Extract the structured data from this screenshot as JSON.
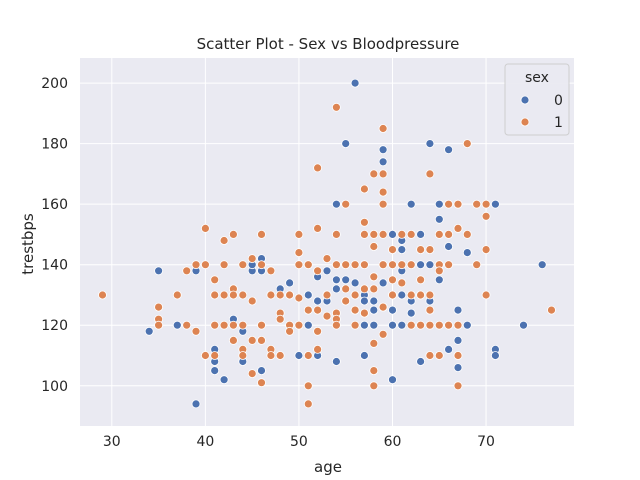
{
  "chart_data": {
    "type": "scatter",
    "title": "Scatter Plot - Sex vs Bloodpressure",
    "xlabel": "age",
    "ylabel": "trestbps",
    "xlim": [
      26.6,
      79.4
    ],
    "ylim": [
      86.7,
      208.3
    ],
    "xticks": [
      30,
      40,
      50,
      60,
      70
    ],
    "yticks": [
      100,
      120,
      140,
      160,
      180,
      200
    ],
    "grid": true,
    "background": "#eaeaf2",
    "legend": {
      "title": "sex",
      "placement": "top-right"
    },
    "series": [
      {
        "name": "0",
        "color": "#4c72b0",
        "points": [
          [
            34,
            118
          ],
          [
            35,
            138
          ],
          [
            37,
            120
          ],
          [
            39,
            94
          ],
          [
            39,
            138
          ],
          [
            41,
            105
          ],
          [
            41,
            112
          ],
          [
            41,
            108
          ],
          [
            42,
            102
          ],
          [
            43,
            122
          ],
          [
            43,
            132
          ],
          [
            44,
            118
          ],
          [
            44,
            108
          ],
          [
            45,
            138
          ],
          [
            45,
            140
          ],
          [
            46,
            142
          ],
          [
            46,
            138
          ],
          [
            46,
            105
          ],
          [
            48,
            132
          ],
          [
            49,
            134
          ],
          [
            49,
            130
          ],
          [
            50,
            120
          ],
          [
            50,
            110
          ],
          [
            51,
            140
          ],
          [
            51,
            130
          ],
          [
            51,
            120
          ],
          [
            52,
            136
          ],
          [
            52,
            128
          ],
          [
            52,
            110
          ],
          [
            53,
            138
          ],
          [
            53,
            130
          ],
          [
            53,
            128
          ],
          [
            54,
            160
          ],
          [
            54,
            135
          ],
          [
            54,
            132
          ],
          [
            54,
            108
          ],
          [
            55,
            180
          ],
          [
            55,
            140
          ],
          [
            55,
            135
          ],
          [
            55,
            128
          ],
          [
            56,
            200
          ],
          [
            56,
            134
          ],
          [
            56,
            130
          ],
          [
            56,
            125
          ],
          [
            57,
            140
          ],
          [
            57,
            130
          ],
          [
            57,
            128
          ],
          [
            57,
            124
          ],
          [
            57,
            120
          ],
          [
            57,
            110
          ],
          [
            58,
            150
          ],
          [
            58,
            136
          ],
          [
            58,
            128
          ],
          [
            58,
            125
          ],
          [
            58,
            120
          ],
          [
            59,
            178
          ],
          [
            59,
            174
          ],
          [
            59,
            140
          ],
          [
            59,
            134
          ],
          [
            59,
            126
          ],
          [
            60,
            150
          ],
          [
            60,
            130
          ],
          [
            60,
            125
          ],
          [
            60,
            120
          ],
          [
            60,
            102
          ],
          [
            61,
            148
          ],
          [
            61,
            145
          ],
          [
            61,
            138
          ],
          [
            61,
            130
          ],
          [
            61,
            120
          ],
          [
            62,
            160
          ],
          [
            62,
            150
          ],
          [
            62,
            140
          ],
          [
            62,
            128
          ],
          [
            62,
            124
          ],
          [
            63,
            150
          ],
          [
            63,
            140
          ],
          [
            63,
            130
          ],
          [
            63,
            108
          ],
          [
            64,
            180
          ],
          [
            64,
            140
          ],
          [
            64,
            128
          ],
          [
            65,
            160
          ],
          [
            65,
            155
          ],
          [
            65,
            150
          ],
          [
            65,
            140
          ],
          [
            65,
            135
          ],
          [
            66,
            178
          ],
          [
            66,
            146
          ],
          [
            66,
            120
          ],
          [
            66,
            112
          ],
          [
            67,
            160
          ],
          [
            67,
            152
          ],
          [
            67,
            125
          ],
          [
            67,
            115
          ],
          [
            67,
            106
          ],
          [
            68,
            144
          ],
          [
            68,
            120
          ],
          [
            71,
            160
          ],
          [
            71,
            112
          ],
          [
            71,
            110
          ],
          [
            74,
            120
          ],
          [
            76,
            140
          ]
        ]
      },
      {
        "name": "1",
        "color": "#dd8452",
        "points": [
          [
            29,
            130
          ],
          [
            35,
            126
          ],
          [
            35,
            122
          ],
          [
            35,
            120
          ],
          [
            37,
            130
          ],
          [
            38,
            138
          ],
          [
            38,
            120
          ],
          [
            39,
            140
          ],
          [
            39,
            118
          ],
          [
            40,
            152
          ],
          [
            40,
            140
          ],
          [
            40,
            110
          ],
          [
            41,
            135
          ],
          [
            41,
            130
          ],
          [
            41,
            120
          ],
          [
            41,
            110
          ],
          [
            42,
            148
          ],
          [
            42,
            140
          ],
          [
            42,
            130
          ],
          [
            42,
            120
          ],
          [
            43,
            150
          ],
          [
            43,
            132
          ],
          [
            43,
            130
          ],
          [
            43,
            115
          ],
          [
            43,
            120
          ],
          [
            44,
            140
          ],
          [
            44,
            130
          ],
          [
            44,
            120
          ],
          [
            44,
            112
          ],
          [
            44,
            110
          ],
          [
            45,
            142
          ],
          [
            45,
            128
          ],
          [
            45,
            115
          ],
          [
            45,
            104
          ],
          [
            46,
            150
          ],
          [
            46,
            140
          ],
          [
            46,
            120
          ],
          [
            46,
            115
          ],
          [
            46,
            101
          ],
          [
            47,
            138
          ],
          [
            47,
            130
          ],
          [
            47,
            112
          ],
          [
            47,
            110
          ],
          [
            48,
            130
          ],
          [
            48,
            124
          ],
          [
            48,
            122
          ],
          [
            48,
            110
          ],
          [
            49,
            130
          ],
          [
            49,
            120
          ],
          [
            49,
            118
          ],
          [
            50,
            150
          ],
          [
            50,
            144
          ],
          [
            50,
            140
          ],
          [
            50,
            129
          ],
          [
            50,
            120
          ],
          [
            51,
            140
          ],
          [
            51,
            125
          ],
          [
            51,
            110
          ],
          [
            51,
            100
          ],
          [
            51,
            94
          ],
          [
            52,
            172
          ],
          [
            52,
            152
          ],
          [
            52,
            138
          ],
          [
            52,
            125
          ],
          [
            52,
            118
          ],
          [
            52,
            112
          ],
          [
            53,
            142
          ],
          [
            53,
            130
          ],
          [
            53,
            123
          ],
          [
            54,
            192
          ],
          [
            54,
            150
          ],
          [
            54,
            140
          ],
          [
            54,
            124
          ],
          [
            54,
            122
          ],
          [
            54,
            120
          ],
          [
            55,
            160
          ],
          [
            55,
            140
          ],
          [
            55,
            132
          ],
          [
            55,
            128
          ],
          [
            56,
            140
          ],
          [
            56,
            130
          ],
          [
            56,
            125
          ],
          [
            56,
            120
          ],
          [
            57,
            165
          ],
          [
            57,
            154
          ],
          [
            57,
            150
          ],
          [
            57,
            140
          ],
          [
            57,
            132
          ],
          [
            57,
            124
          ],
          [
            58,
            170
          ],
          [
            58,
            150
          ],
          [
            58,
            146
          ],
          [
            58,
            136
          ],
          [
            58,
            132
          ],
          [
            58,
            114
          ],
          [
            58,
            105
          ],
          [
            58,
            100
          ],
          [
            59,
            185
          ],
          [
            59,
            170
          ],
          [
            59,
            164
          ],
          [
            59,
            160
          ],
          [
            59,
            150
          ],
          [
            59,
            140
          ],
          [
            59,
            126
          ],
          [
            59,
            117
          ],
          [
            60,
            145
          ],
          [
            60,
            140
          ],
          [
            60,
            135
          ],
          [
            60,
            130
          ],
          [
            61,
            150
          ],
          [
            61,
            140
          ],
          [
            61,
            134
          ],
          [
            62,
            150
          ],
          [
            62,
            140
          ],
          [
            62,
            130
          ],
          [
            62,
            120
          ],
          [
            63,
            145
          ],
          [
            63,
            135
          ],
          [
            63,
            130
          ],
          [
            63,
            120
          ],
          [
            64,
            170
          ],
          [
            64,
            145
          ],
          [
            64,
            130
          ],
          [
            64,
            125
          ],
          [
            64,
            120
          ],
          [
            64,
            110
          ],
          [
            65,
            150
          ],
          [
            65,
            140
          ],
          [
            65,
            138
          ],
          [
            65,
            120
          ],
          [
            65,
            110
          ],
          [
            66,
            160
          ],
          [
            66,
            150
          ],
          [
            66,
            140
          ],
          [
            66,
            120
          ],
          [
            67,
            160
          ],
          [
            67,
            152
          ],
          [
            67,
            120
          ],
          [
            67,
            110
          ],
          [
            67,
            100
          ],
          [
            68,
            180
          ],
          [
            68,
            150
          ],
          [
            69,
            160
          ],
          [
            69,
            140
          ],
          [
            70,
            160
          ],
          [
            70,
            156
          ],
          [
            70,
            145
          ],
          [
            70,
            130
          ],
          [
            77,
            125
          ]
        ]
      }
    ]
  }
}
